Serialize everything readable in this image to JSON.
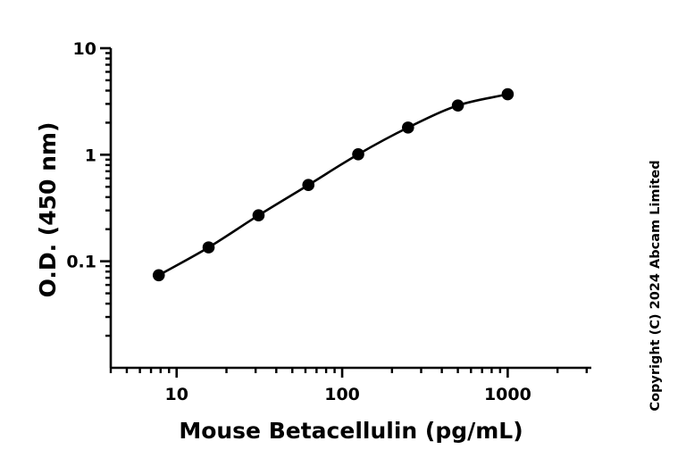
{
  "chart_data": {
    "type": "scatter",
    "x_scale": "log",
    "y_scale": "log",
    "xlabel": "Mouse Betacellulin (pg/mL)",
    "ylabel": "O.D. (450 nm)",
    "xlim": [
      4,
      3200
    ],
    "ylim": [
      0.01,
      10
    ],
    "x_ticks": [
      10,
      100,
      1000
    ],
    "x_tick_labels": [
      "10",
      "100",
      "1000"
    ],
    "y_ticks": [
      0.1,
      1,
      10
    ],
    "y_tick_labels": [
      "0.1",
      "1",
      "10"
    ],
    "grid": false,
    "legend": "none",
    "fit_curve": true,
    "series": [
      {
        "x": [
          7.8,
          15.6,
          31.25,
          62.5,
          125,
          250,
          500,
          1000
        ],
        "y": [
          0.074,
          0.135,
          0.27,
          0.52,
          1.01,
          1.8,
          2.9,
          3.7
        ]
      }
    ],
    "colors": {
      "points": "#000000",
      "curve": "#000000",
      "axes": "#000000"
    }
  },
  "copyright": "Copyright (C) 2024 Abcam Limited"
}
